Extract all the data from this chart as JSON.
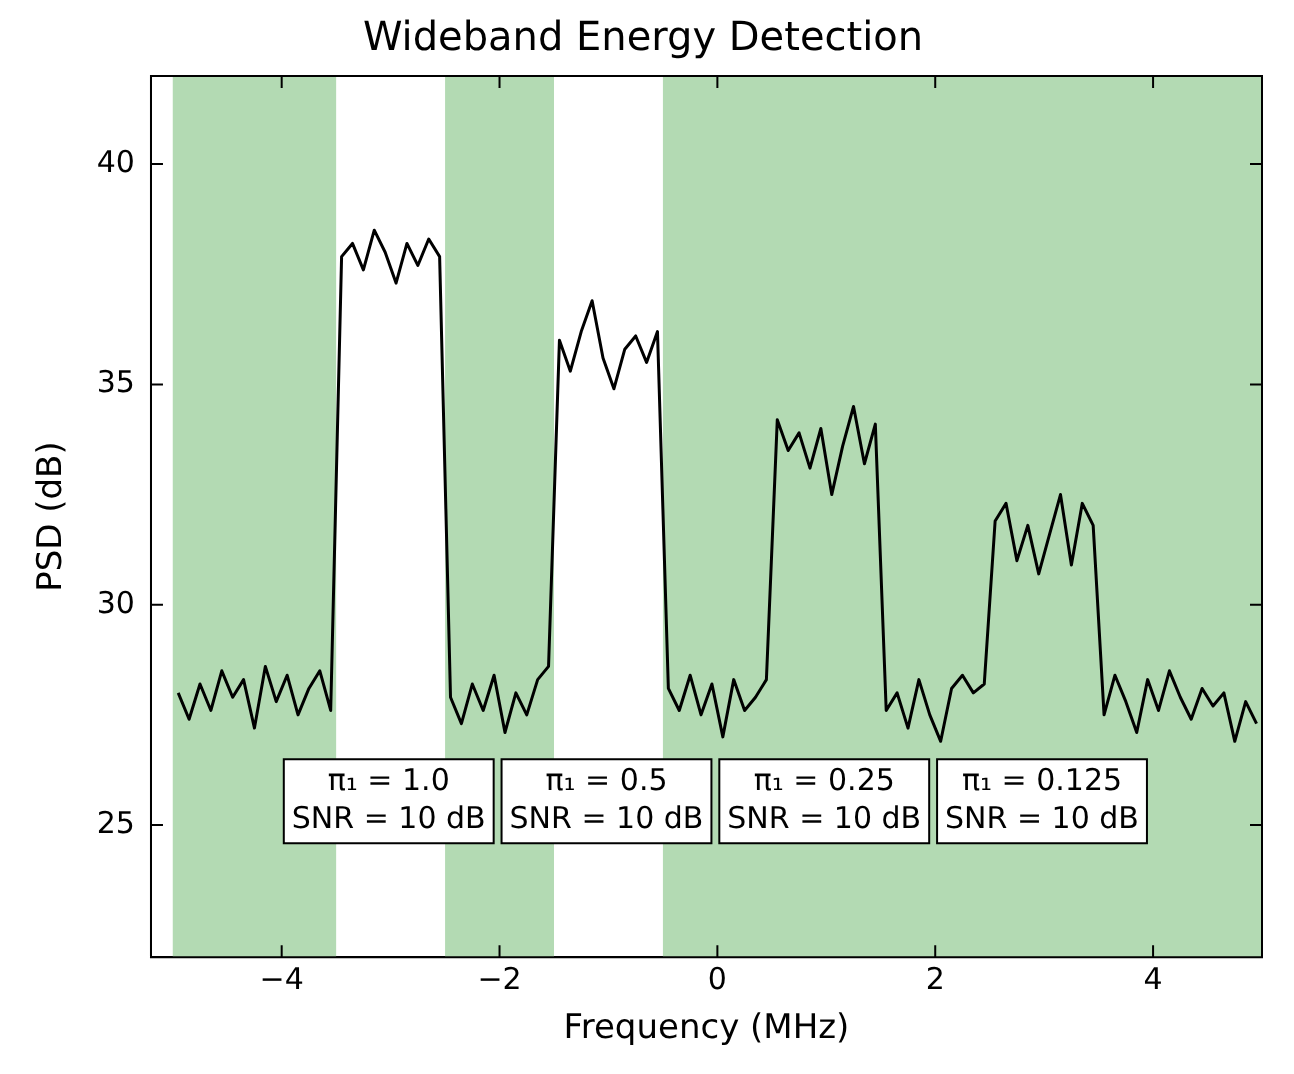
{
  "chart_data": {
    "type": "line",
    "title": "Wideband Energy Detection",
    "xlabel": "Frequency (MHz)",
    "ylabel": "PSD (dB)",
    "x": [
      -4.95,
      -4.85,
      -4.75,
      -4.65,
      -4.55,
      -4.45,
      -4.35,
      -4.25,
      -4.15,
      -4.05,
      -3.95,
      -3.85,
      -3.75,
      -3.65,
      -3.55,
      -3.45,
      -3.35,
      -3.25,
      -3.15,
      -3.05,
      -2.95,
      -2.85,
      -2.75,
      -2.65,
      -2.55,
      -2.45,
      -2.35,
      -2.25,
      -2.15,
      -2.05,
      -1.95,
      -1.85,
      -1.75,
      -1.65,
      -1.55,
      -1.45,
      -1.35,
      -1.25,
      -1.15,
      -1.05,
      -0.95,
      -0.85,
      -0.75,
      -0.65,
      -0.55,
      -0.45,
      -0.35,
      -0.25,
      -0.15,
      -0.05,
      0.05,
      0.15,
      0.25,
      0.35,
      0.45,
      0.55,
      0.65,
      0.75,
      0.85,
      0.95,
      1.05,
      1.15,
      1.25,
      1.35,
      1.45,
      1.55,
      1.65,
      1.75,
      1.85,
      1.95,
      2.05,
      2.15,
      2.25,
      2.35,
      2.45,
      2.55,
      2.65,
      2.75,
      2.85,
      2.95,
      3.05,
      3.15,
      3.25,
      3.35,
      3.45,
      3.55,
      3.65,
      3.75,
      3.85,
      3.95,
      4.05,
      4.15,
      4.25,
      4.35,
      4.45,
      4.55,
      4.65,
      4.75,
      4.85,
      4.95
    ],
    "series": [
      {
        "color": "#000000",
        "values": [
          28.0,
          27.4,
          28.2,
          27.6,
          28.5,
          27.9,
          28.3,
          27.2,
          28.6,
          27.8,
          28.4,
          27.5,
          28.1,
          28.5,
          27.6,
          37.9,
          38.2,
          37.6,
          38.5,
          38.0,
          37.3,
          38.2,
          37.7,
          38.3,
          37.9,
          27.9,
          27.3,
          28.2,
          27.6,
          28.4,
          27.1,
          28.0,
          27.5,
          28.3,
          28.6,
          36.0,
          35.3,
          36.2,
          36.9,
          35.6,
          34.9,
          35.8,
          36.1,
          35.5,
          36.2,
          28.1,
          27.6,
          28.4,
          27.5,
          28.2,
          27.0,
          28.3,
          27.6,
          27.9,
          28.3,
          34.2,
          33.5,
          33.9,
          33.1,
          34.0,
          32.5,
          33.6,
          34.5,
          33.2,
          34.1,
          27.6,
          28.0,
          27.2,
          28.3,
          27.5,
          26.9,
          28.1,
          28.4,
          28.0,
          28.2,
          31.9,
          32.3,
          31.0,
          31.8,
          30.7,
          31.6,
          32.5,
          30.9,
          32.3,
          31.8,
          27.5,
          28.4,
          27.8,
          27.1,
          28.3,
          27.6,
          28.5,
          27.9,
          27.4,
          28.1,
          27.7,
          28.0,
          26.9,
          27.8,
          27.3
        ]
      }
    ],
    "xlim": [
      -5.2,
      5
    ],
    "ylim": [
      22,
      42
    ],
    "xticks": [
      {
        "value": -4,
        "label": "−4"
      },
      {
        "value": -2,
        "label": "−2"
      },
      0,
      2,
      4
    ],
    "yticks": [
      25,
      30,
      35,
      40
    ],
    "bands": [
      {
        "axis": "x",
        "from": -5,
        "to": -3.5,
        "color": "#b3dab3"
      },
      {
        "axis": "x",
        "from": -2.5,
        "to": -1.5,
        "color": "#b3dab3"
      },
      {
        "axis": "x",
        "from": -0.5,
        "to": 5,
        "color": "#b3dab3"
      }
    ],
    "annotations": [
      "π₁ = 1.0\nSNR = 10 dB",
      "π₁ = 0.5\nSNR = 10 dB",
      "π₁ = 0.25\nSNR = 10 dB",
      "π₁ = 0.125\nSNR = 10 dB"
    ]
  }
}
